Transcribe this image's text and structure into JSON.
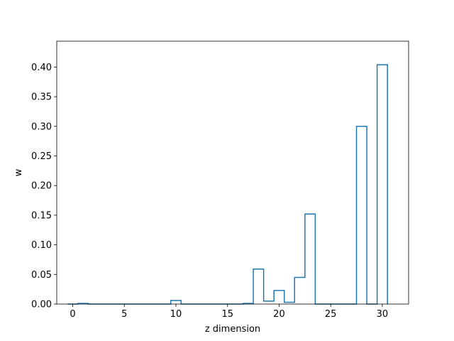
{
  "chart_data": {
    "type": "bar",
    "style": "step-histogram",
    "title": "",
    "xlabel": "z dimension",
    "ylabel": "w",
    "xlim": [
      -1.55,
      32.55
    ],
    "ylim": [
      0,
      0.4437
    ],
    "xticks": [
      0,
      5,
      10,
      15,
      20,
      25,
      30
    ],
    "yticks": [
      0.0,
      0.05,
      0.1,
      0.15,
      0.2,
      0.25,
      0.3,
      0.35,
      0.4
    ],
    "ytick_labels": [
      "0.00",
      "0.05",
      "0.10",
      "0.15",
      "0.20",
      "0.25",
      "0.30",
      "0.35",
      "0.40"
    ],
    "grid": false,
    "color": "#1f77b4",
    "x": [
      0,
      1,
      2,
      3,
      4,
      5,
      6,
      7,
      8,
      9,
      10,
      11,
      12,
      13,
      14,
      15,
      16,
      17,
      18,
      19,
      20,
      21,
      22,
      23,
      24,
      25,
      26,
      27,
      28,
      29,
      30
    ],
    "values": [
      0,
      0.001,
      0,
      0,
      0,
      0,
      0,
      0,
      0,
      0,
      0.006,
      0,
      0,
      0,
      0,
      0,
      0,
      0.001,
      0.059,
      0.005,
      0.023,
      0.003,
      0.045,
      0.152,
      0,
      0,
      0,
      0,
      0.3,
      0,
      0.404
    ]
  }
}
